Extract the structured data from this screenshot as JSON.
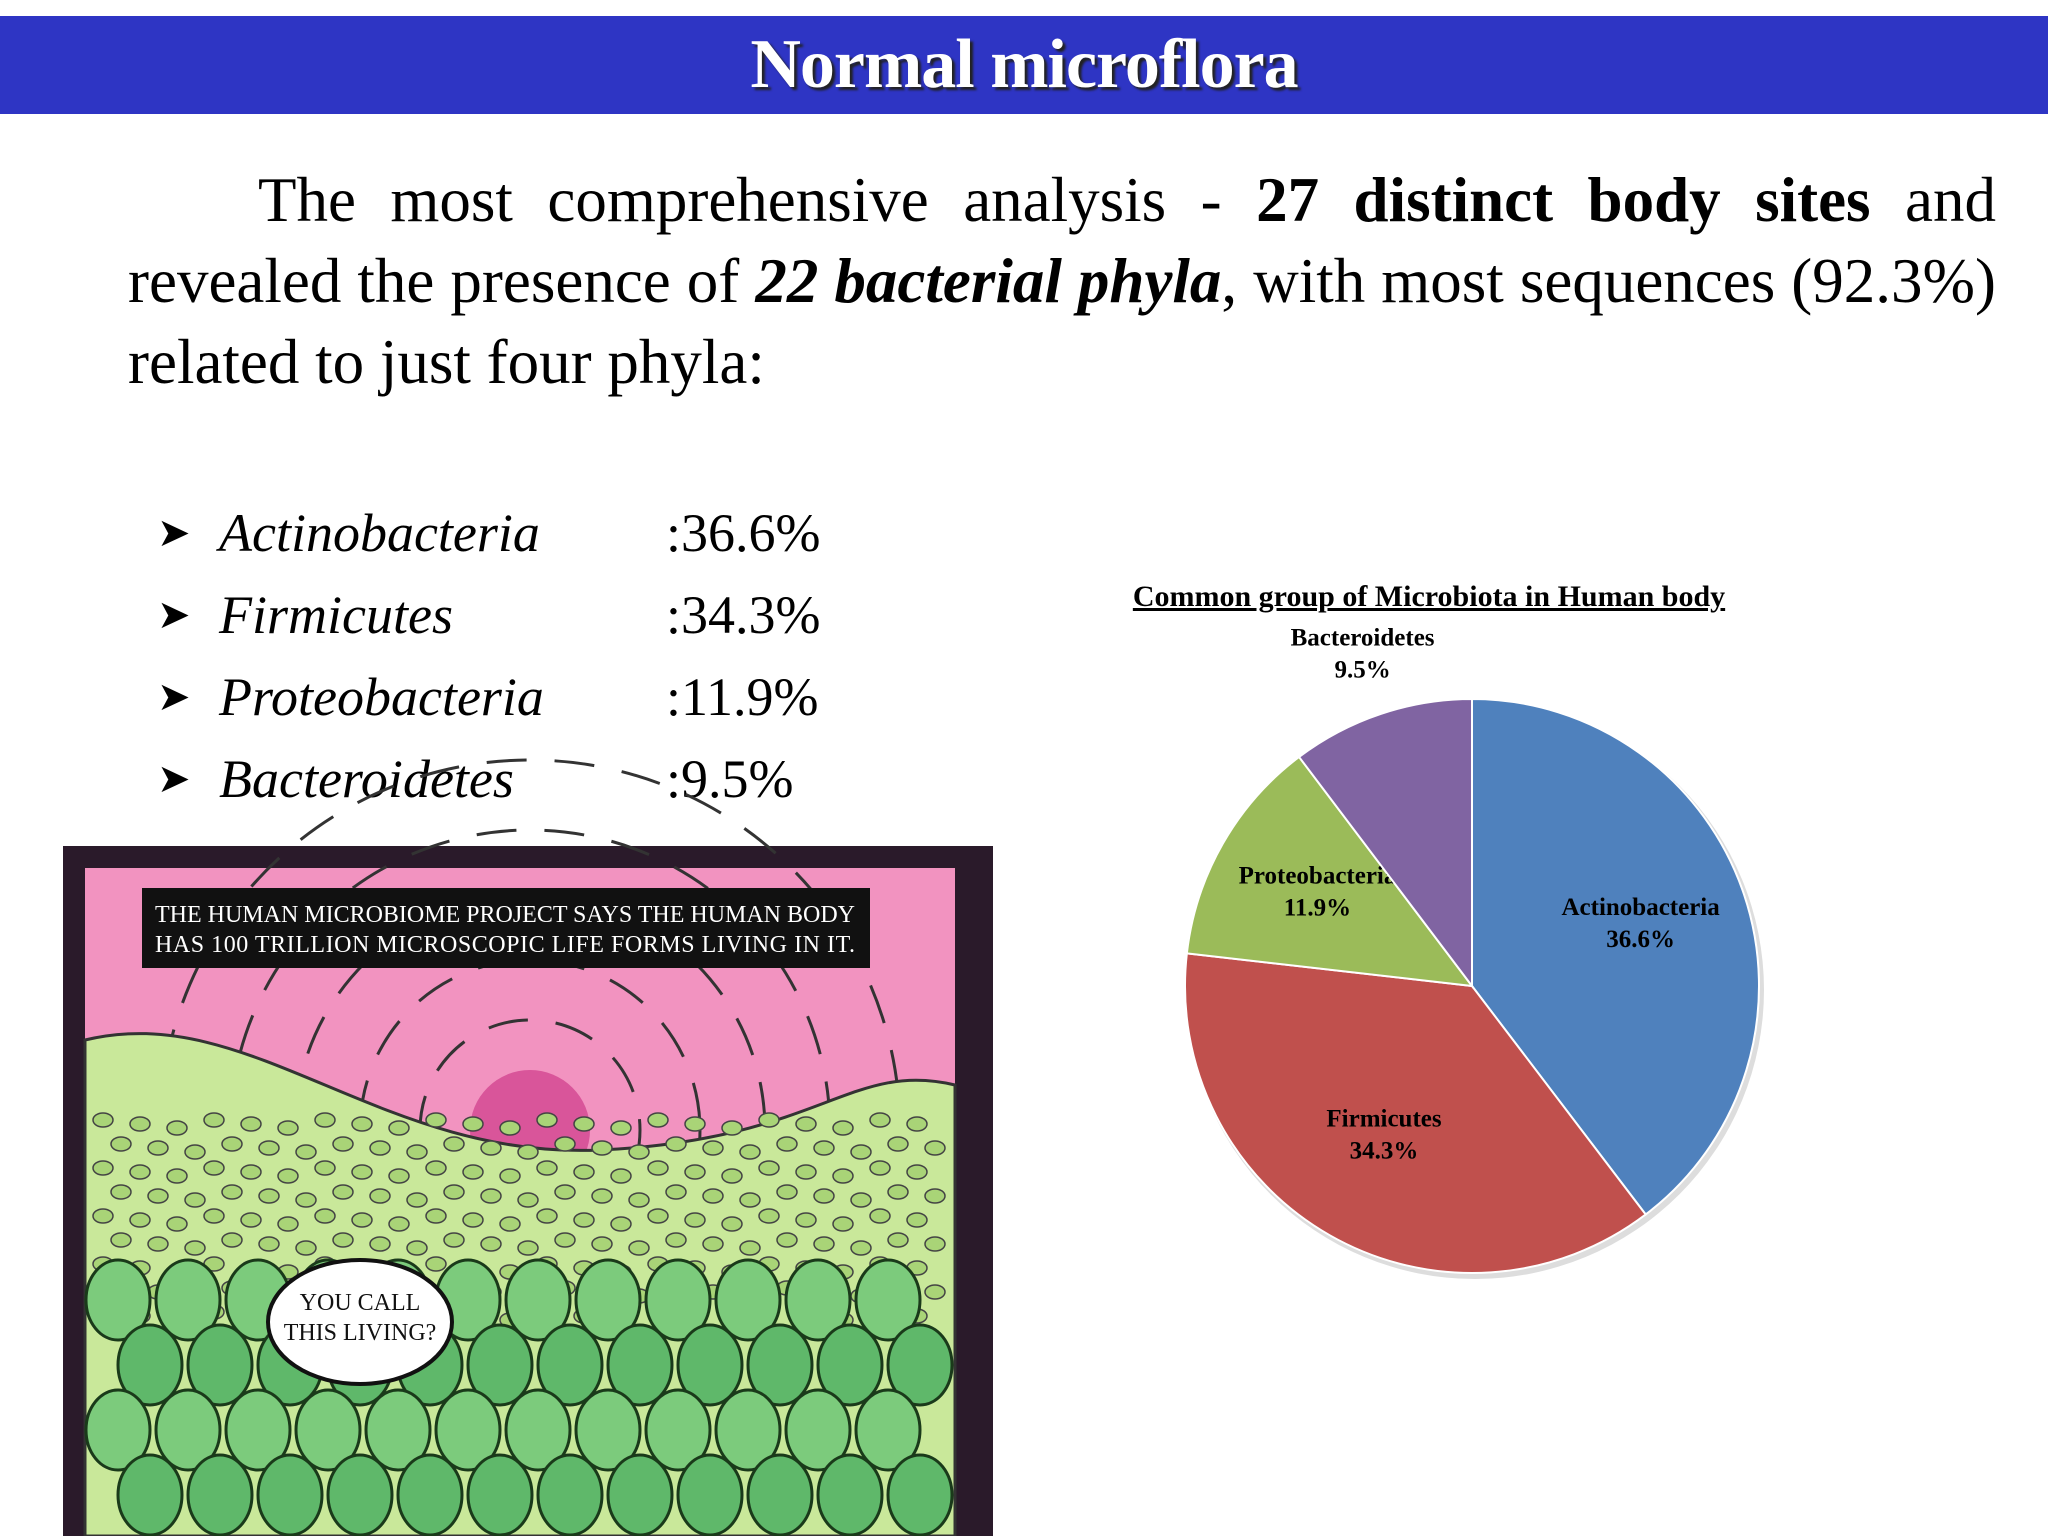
{
  "header": {
    "title": "Normal microflora"
  },
  "paragraph": [
    "The most comprehensive analysis - ",
    "27 distinct body sites",
    " and revealed the presence of ",
    "22 bacterial phyla",
    ", with most sequences (92.3%) related to just four phyla:"
  ],
  "list": [
    {
      "name": "Actinobacteria",
      "value": ":36.6%"
    },
    {
      "name": "Firmicutes",
      "value": ":34.3%"
    },
    {
      "name": "Proteobacteria",
      "value": ":11.9%"
    },
    {
      "name": "Bacteroidetes",
      "value": ":9.5%"
    }
  ],
  "cartoon": {
    "caption": [
      "THE HUMAN MICROBIOME PROJECT SAYS THE HUMAN BODY",
      "HAS 100 TRILLION MICROSCOPIC LIFE FORMS LIVING IN IT."
    ],
    "bubble": [
      "YOU CALL",
      "THIS LIVING?"
    ]
  },
  "chart_data": {
    "type": "pie",
    "title": "Common group of Microbiota in Human body",
    "categories": [
      "Actinobacteria",
      "Firmicutes",
      "Proteobacteria",
      "Bacteroidetes"
    ],
    "values": [
      36.6,
      34.3,
      11.9,
      9.5
    ],
    "value_labels": [
      "36.6%",
      "34.3%",
      "11.9%",
      "9.5%"
    ],
    "colors": [
      "#4f81bd",
      "#c0504d",
      "#9bbb59",
      "#8064a2"
    ]
  }
}
